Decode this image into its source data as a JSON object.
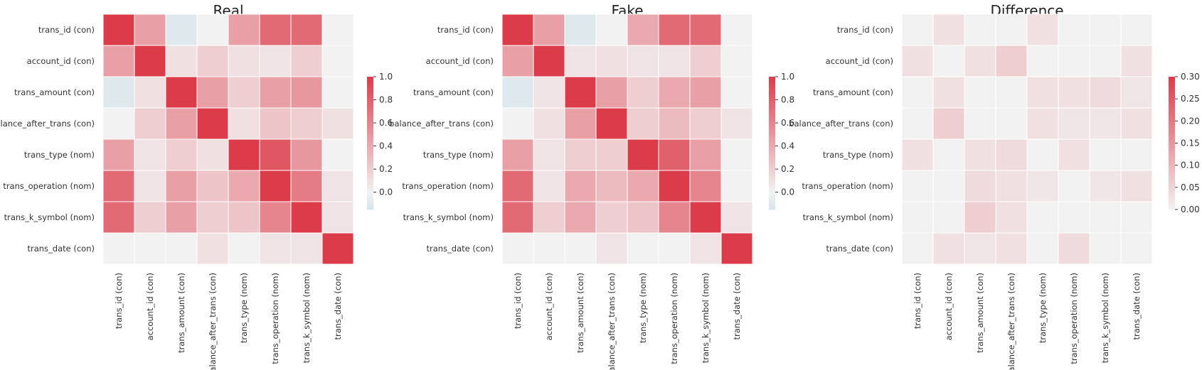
{
  "chart_data": [
    {
      "type": "heatmap",
      "title": "Real",
      "row_labels": [
        "trans_id (con)",
        "account_id (con)",
        "trans_amount (con)",
        "balance_after_trans (con)",
        "trans_type (nom)",
        "trans_operation (nom)",
        "trans_k_symbol (nom)",
        "trans_date (con)"
      ],
      "col_labels": [
        "trans_id (con)",
        "account_id (con)",
        "trans_amount (con)",
        "balance_after_trans (con)",
        "trans_type (nom)",
        "trans_operation (nom)",
        "trans_k_symbol (nom)",
        "trans_date (con)"
      ],
      "values": [
        [
          1.0,
          0.45,
          -0.1,
          0.0,
          0.45,
          0.75,
          0.75,
          0.0
        ],
        [
          0.45,
          1.0,
          0.1,
          0.2,
          0.1,
          0.08,
          0.2,
          0.0
        ],
        [
          -0.1,
          0.1,
          1.0,
          0.45,
          0.2,
          0.45,
          0.5,
          0.0
        ],
        [
          0.0,
          0.2,
          0.45,
          1.0,
          0.1,
          0.25,
          0.2,
          0.1
        ],
        [
          0.45,
          0.08,
          0.2,
          0.1,
          1.0,
          0.85,
          0.5,
          0.0
        ],
        [
          0.75,
          0.08,
          0.45,
          0.25,
          0.4,
          1.0,
          0.65,
          0.08
        ],
        [
          0.75,
          0.2,
          0.45,
          0.2,
          0.25,
          0.6,
          1.0,
          0.08
        ],
        [
          0.0,
          0.0,
          0.0,
          0.1,
          0.0,
          0.08,
          0.08,
          1.0
        ]
      ],
      "colorbar": {
        "min": -0.15,
        "max": 1.0,
        "ticks": [
          -0.0,
          0.2,
          0.4,
          0.6,
          0.8,
          1.0
        ],
        "tick_labels": [
          "0.0",
          "0.2",
          "0.4",
          "0.6",
          "0.8",
          "1.0"
        ]
      }
    },
    {
      "type": "heatmap",
      "title": "Fake",
      "row_labels": [
        "trans_id (con)",
        "account_id (con)",
        "trans_amount (con)",
        "balance_after_trans (con)",
        "trans_type (nom)",
        "trans_operation (nom)",
        "trans_k_symbol (nom)",
        "trans_date (con)"
      ],
      "col_labels": [
        "trans_id (con)",
        "account_id (con)",
        "trans_amount (con)",
        "balance_after_trans (con)",
        "trans_type (nom)",
        "trans_operation (nom)",
        "trans_k_symbol (nom)",
        "trans_date (con)"
      ],
      "values": [
        [
          1.0,
          0.45,
          -0.1,
          0.0,
          0.4,
          0.75,
          0.75,
          0.0
        ],
        [
          0.45,
          1.0,
          0.08,
          0.1,
          0.08,
          0.08,
          0.2,
          0.0
        ],
        [
          -0.1,
          0.08,
          1.0,
          0.45,
          0.2,
          0.4,
          0.45,
          0.0
        ],
        [
          0.0,
          0.1,
          0.45,
          1.0,
          0.2,
          0.3,
          0.2,
          0.08
        ],
        [
          0.45,
          0.08,
          0.2,
          0.2,
          1.0,
          0.8,
          0.45,
          0.0
        ],
        [
          0.75,
          0.08,
          0.4,
          0.3,
          0.4,
          1.0,
          0.6,
          0.0
        ],
        [
          0.75,
          0.2,
          0.4,
          0.2,
          0.25,
          0.6,
          1.0,
          0.08
        ],
        [
          0.0,
          0.0,
          0.0,
          0.08,
          0.0,
          0.0,
          0.08,
          1.0
        ]
      ],
      "colorbar": {
        "min": -0.15,
        "max": 1.0,
        "ticks": [
          -0.0,
          0.2,
          0.4,
          0.6,
          0.8,
          1.0
        ],
        "tick_labels": [
          "0.0",
          "0.2",
          "0.4",
          "0.6",
          "0.8",
          "1.0"
        ]
      }
    },
    {
      "type": "heatmap",
      "title": "Difference",
      "row_labels": [
        "trans_id (con)",
        "account_id (con)",
        "trans_amount (con)",
        "balance_after_trans (con)",
        "trans_type (nom)",
        "trans_operation (nom)",
        "trans_k_symbol (nom)",
        "trans_date (con)"
      ],
      "col_labels": [
        "trans_id (con)",
        "account_id (con)",
        "trans_amount (con)",
        "balance_after_trans (con)",
        "trans_type (nom)",
        "trans_operation (nom)",
        "trans_k_symbol (nom)",
        "trans_date (con)"
      ],
      "values": [
        [
          0.0,
          0.03,
          0.0,
          0.0,
          0.03,
          0.0,
          0.0,
          0.0
        ],
        [
          0.03,
          0.0,
          0.03,
          0.06,
          0.0,
          0.0,
          0.0,
          0.03
        ],
        [
          0.0,
          0.03,
          0.0,
          0.0,
          0.03,
          0.03,
          0.04,
          0.02
        ],
        [
          0.0,
          0.06,
          0.0,
          0.0,
          0.03,
          0.02,
          0.02,
          0.03
        ],
        [
          0.03,
          0.0,
          0.03,
          0.04,
          0.0,
          0.03,
          0.0,
          0.0
        ],
        [
          0.0,
          0.0,
          0.04,
          0.03,
          0.02,
          0.0,
          0.02,
          0.03
        ],
        [
          0.0,
          0.0,
          0.06,
          0.03,
          0.0,
          0.0,
          0.0,
          0.0
        ],
        [
          0.0,
          0.03,
          0.02,
          0.03,
          0.0,
          0.04,
          0.0,
          0.0
        ]
      ],
      "colorbar": {
        "min": 0.0,
        "max": 0.3,
        "ticks": [
          0.0,
          0.05,
          0.1,
          0.15,
          0.2,
          0.25,
          0.3
        ],
        "tick_labels": [
          "0.00",
          "0.05",
          "0.10",
          "0.15",
          "0.20",
          "0.25",
          "0.30"
        ]
      }
    }
  ],
  "colors": {
    "high": "#dc3c4a",
    "neutral": "#f2f2f2",
    "low": "#d5e5ea"
  }
}
